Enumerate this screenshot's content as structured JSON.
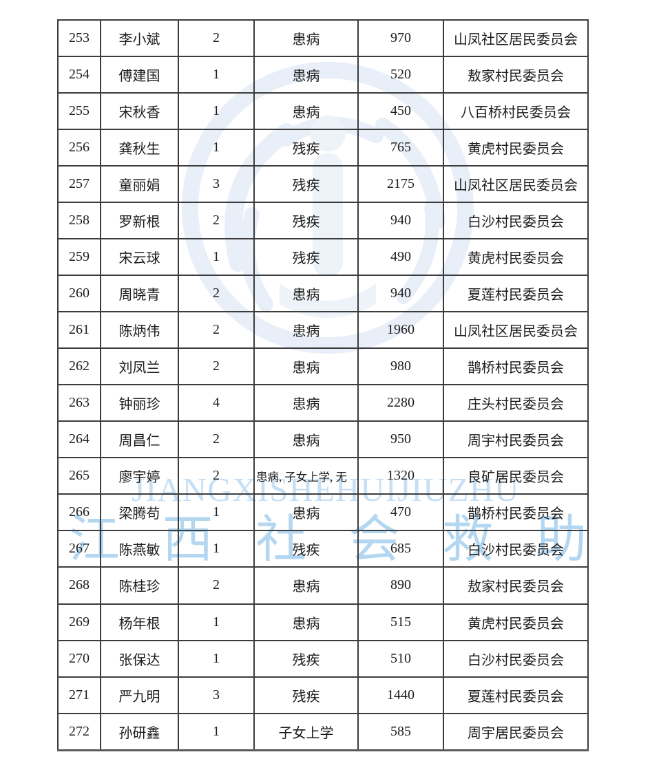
{
  "page": {
    "background": "#ffffff"
  },
  "colors": {
    "pagebg": "#ffffff",
    "grid": "#3c3c3c",
    "txt": "#1c1c1c",
    "wmlatin": "#c6dff4",
    "wmcn": "#b3d7f1",
    "wmemblem": "#e9eff8",
    "wmemblem2": "#eef3fa"
  },
  "watermark": {
    "latin_text": "JIANGXISHEHUIJIUZHU",
    "cn_chars": [
      "江",
      "西",
      "社",
      "会",
      "救",
      "助"
    ],
    "emblem_icon": "circular-seal-watermark"
  },
  "table": {
    "column_keys": [
      "idx",
      "name",
      "num",
      "reason",
      "amount",
      "committee"
    ],
    "rows": [
      {
        "idx": "253",
        "name": "李小斌",
        "num": "2",
        "reason": "患病",
        "amount": "970",
        "committee": "山凤社区居民委员会"
      },
      {
        "idx": "254",
        "name": "傅建国",
        "num": "1",
        "reason": "患病",
        "amount": "520",
        "committee": "敖家村民委员会"
      },
      {
        "idx": "255",
        "name": "宋秋香",
        "num": "1",
        "reason": "患病",
        "amount": "450",
        "committee": "八百桥村民委员会"
      },
      {
        "idx": "256",
        "name": "龚秋生",
        "num": "1",
        "reason": "残疾",
        "amount": "765",
        "committee": "黄虎村民委员会"
      },
      {
        "idx": "257",
        "name": "童丽娟",
        "num": "3",
        "reason": "残疾",
        "amount": "2175",
        "committee": "山凤社区居民委员会"
      },
      {
        "idx": "258",
        "name": "罗新根",
        "num": "2",
        "reason": "残疾",
        "amount": "940",
        "committee": "白沙村民委员会"
      },
      {
        "idx": "259",
        "name": "宋云球",
        "num": "1",
        "reason": "残疾",
        "amount": "490",
        "committee": "黄虎村民委员会"
      },
      {
        "idx": "260",
        "name": "周晓青",
        "num": "2",
        "reason": "患病",
        "amount": "940",
        "committee": "夏莲村民委员会"
      },
      {
        "idx": "261",
        "name": "陈炳伟",
        "num": "2",
        "reason": "患病",
        "amount": "1960",
        "committee": "山凤社区居民委员会"
      },
      {
        "idx": "262",
        "name": "刘凤兰",
        "num": "2",
        "reason": "患病",
        "amount": "980",
        "committee": "鹊桥村民委员会"
      },
      {
        "idx": "263",
        "name": "钟丽珍",
        "num": "4",
        "reason": "患病",
        "amount": "2280",
        "committee": "庄头村民委员会"
      },
      {
        "idx": "264",
        "name": "周昌仁",
        "num": "2",
        "reason": "患病",
        "amount": "950",
        "committee": "周宇村民委员会"
      },
      {
        "idx": "265",
        "name": "廖宇婷",
        "num": "2",
        "reason": "患病, 子女上学, 无",
        "amount": "1320",
        "committee": "良矿居民委员会"
      },
      {
        "idx": "266",
        "name": "梁腾苟",
        "num": "1",
        "reason": "患病",
        "amount": "470",
        "committee": "鹊桥村民委员会"
      },
      {
        "idx": "267",
        "name": "陈燕敏",
        "num": "1",
        "reason": "残疾",
        "amount": "685",
        "committee": "白沙村民委员会"
      },
      {
        "idx": "268",
        "name": "陈桂珍",
        "num": "2",
        "reason": "患病",
        "amount": "890",
        "committee": "敖家村民委员会"
      },
      {
        "idx": "269",
        "name": "杨年根",
        "num": "1",
        "reason": "患病",
        "amount": "515",
        "committee": "黄虎村民委员会"
      },
      {
        "idx": "270",
        "name": "张保达",
        "num": "1",
        "reason": "残疾",
        "amount": "510",
        "committee": "白沙村民委员会"
      },
      {
        "idx": "271",
        "name": "严九明",
        "num": "3",
        "reason": "残疾",
        "amount": "1440",
        "committee": "夏莲村民委员会"
      },
      {
        "idx": "272",
        "name": "孙研鑫",
        "num": "1",
        "reason": "子女上学",
        "amount": "585",
        "committee": "周宇居民委员会"
      }
    ]
  }
}
